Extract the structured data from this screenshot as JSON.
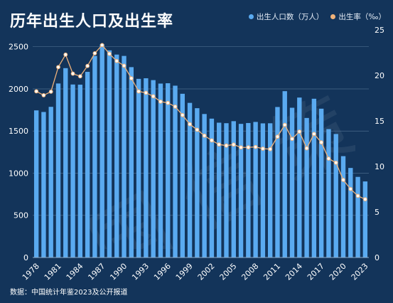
{
  "title": "历年出生人口及出生率",
  "source": "数据：中国统计年鉴2023及公开报道",
  "colors": {
    "background": "#13345a",
    "bar": "#5aaaf0",
    "line": "#f0b27a",
    "grid": "#4a6a8c"
  },
  "chart_data": {
    "type": "bar+line",
    "title": "历年出生人口及出生率",
    "x": [
      1978,
      1979,
      1980,
      1981,
      1982,
      1983,
      1984,
      1985,
      1986,
      1987,
      1988,
      1989,
      1990,
      1991,
      1992,
      1993,
      1994,
      1995,
      1996,
      1997,
      1998,
      1999,
      2000,
      2001,
      2002,
      2003,
      2004,
      2005,
      2006,
      2007,
      2008,
      2009,
      2010,
      2011,
      2012,
      2013,
      2014,
      2015,
      2016,
      2017,
      2018,
      2019,
      2020,
      2021,
      2022,
      2023
    ],
    "x_tick_labels": [
      "1978",
      "1981",
      "1984",
      "1987",
      "1990",
      "1993",
      "1996",
      "1999",
      "2002",
      "2005",
      "2008",
      "2011",
      "2014",
      "2017",
      "2020",
      "2023"
    ],
    "series": [
      {
        "name": "出生人口数（万人）",
        "type": "bar",
        "axis": "left",
        "values": [
          1745,
          1726,
          1787,
          2064,
          2246,
          2052,
          2050,
          2202,
          2391,
          2529,
          2457,
          2407,
          2391,
          2258,
          2119,
          2126,
          2104,
          2063,
          2067,
          2038,
          1942,
          1834,
          1771,
          1702,
          1647,
          1599,
          1593,
          1617,
          1585,
          1595,
          1608,
          1591,
          1592,
          1785,
          1973,
          1776,
          1897,
          1655,
          1883,
          1765,
          1523,
          1465,
          1202,
          1062,
          956,
          902
        ]
      },
      {
        "name": "出生率（‰）",
        "type": "line",
        "axis": "right",
        "values": [
          18.25,
          17.82,
          18.21,
          20.91,
          22.28,
          20.19,
          19.9,
          21.04,
          22.43,
          23.33,
          22.37,
          21.58,
          21.06,
          19.68,
          18.24,
          18.09,
          17.7,
          17.12,
          16.98,
          16.57,
          15.64,
          14.64,
          14.03,
          13.38,
          12.86,
          12.41,
          12.29,
          12.4,
          12.09,
          12.1,
          12.14,
          11.95,
          11.9,
          13.27,
          14.57,
          13.03,
          13.83,
          11.99,
          13.57,
          12.64,
          10.86,
          10.41,
          8.52,
          7.52,
          6.77,
          6.39
        ]
      }
    ],
    "y_left": {
      "ylim": [
        0,
        2700
      ],
      "ticks": [
        0,
        500,
        1000,
        1500,
        2000,
        2500
      ]
    },
    "y_right": {
      "ylim": [
        0,
        25
      ],
      "ticks": [
        0,
        5,
        10,
        15,
        20,
        25
      ]
    },
    "legend_placement": "top-right",
    "grid": true
  }
}
